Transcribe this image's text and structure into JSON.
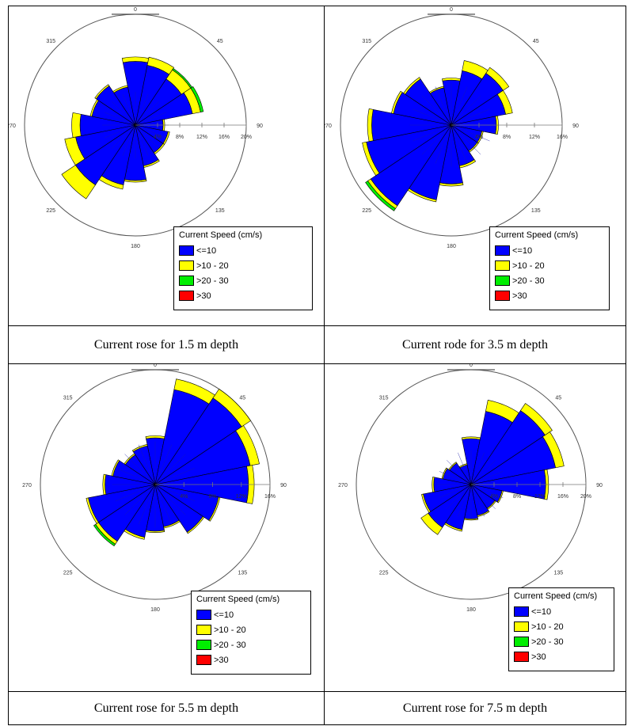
{
  "captions": [
    "Current rose for 1.5 m depth",
    "Current rode for 3.5 m depth",
    "Current rose for 5.5 m depth",
    "Current rose for 7.5 m depth"
  ],
  "colors": {
    "lte10": "#0000ff",
    "10to20": "#ffff00",
    "20to30": "#00ee00",
    "gt30": "#ff0000",
    "outline": "#000000",
    "axis": "#777777"
  },
  "chart_data": [
    {
      "type": "rose",
      "legend_title": "Current Speed (cm/s)",
      "legend_entries": [
        "<=10",
        ">10 - 20",
        ">20 - 30",
        ">30"
      ],
      "direction_labels": [
        "0",
        "45",
        "90",
        "135",
        "180",
        "225",
        "270",
        "315"
      ],
      "radial_ticks": [
        4,
        8,
        12,
        16,
        20
      ],
      "radial_tick_labels": [
        "4%",
        "8%",
        "12%",
        "16%",
        "20%"
      ],
      "rmax": 20,
      "directions_deg": [
        0,
        22.5,
        45,
        67.5,
        90,
        112.5,
        135,
        157.5,
        180,
        202.5,
        225,
        247.5,
        270,
        292.5,
        315,
        337.5
      ],
      "series": [
        {
          "name": "<=10",
          "values": [
            11.5,
            11.0,
            10.0,
            10.5,
            5.0,
            6.0,
            6.0,
            7.5,
            10.0,
            11.0,
            13.0,
            11.0,
            10.0,
            8.0,
            8.5,
            7.0
          ]
        },
        {
          "name": ">10 - 20",
          "values": [
            0.8,
            1.5,
            2.0,
            1.5,
            0.3,
            0.3,
            0.3,
            0.3,
            0.3,
            0.8,
            3.0,
            2.0,
            1.5,
            0.3,
            0.3,
            0.3
          ]
        },
        {
          "name": ">20 - 30",
          "values": [
            0,
            0,
            0.3,
            0.5,
            0,
            0,
            0,
            0,
            0,
            0,
            0,
            0,
            0,
            0,
            0,
            0
          ]
        },
        {
          "name": ">30",
          "values": [
            0,
            0,
            0,
            0,
            0,
            0,
            0,
            0,
            0,
            0,
            0,
            0,
            0,
            0,
            0,
            0
          ]
        }
      ]
    },
    {
      "type": "rose",
      "legend_title": "Current Speed (cm/s)",
      "legend_entries": [
        "<=10",
        ">10 - 20",
        ">20 - 30",
        ">30"
      ],
      "direction_labels": [
        "0",
        "45",
        "90",
        "135",
        "180",
        "225",
        "270",
        "315"
      ],
      "radial_ticks": [
        4,
        8,
        12,
        16
      ],
      "radial_tick_labels": [
        "4%",
        "8%",
        "12%",
        "16%"
      ],
      "rmax": 16,
      "directions_deg": [
        0,
        22.5,
        45,
        67.5,
        90,
        112.5,
        135,
        157.5,
        180,
        202.5,
        225,
        247.5,
        270,
        292.5,
        315,
        337.5
      ],
      "series": [
        {
          "name": "<=10",
          "values": [
            6.5,
            8.0,
            9.0,
            8.0,
            6.5,
            4.5,
            4.5,
            6.0,
            8.5,
            11.0,
            14.0,
            12.5,
            11.5,
            8.5,
            8.0,
            5.5
          ]
        },
        {
          "name": ">10 - 20",
          "values": [
            0.3,
            1.5,
            1.0,
            1.0,
            0.3,
            0.2,
            0.2,
            0.3,
            0.3,
            0.3,
            0.5,
            0.6,
            0.6,
            0.3,
            0.3,
            0.2
          ]
        },
        {
          "name": ">20 - 30",
          "values": [
            0,
            0,
            0,
            0,
            0,
            0,
            0,
            0,
            0,
            0,
            0.4,
            0,
            0,
            0,
            0,
            0
          ]
        },
        {
          "name": ">30",
          "values": [
            0,
            0,
            0,
            0,
            0,
            0,
            0,
            0,
            0,
            0,
            0,
            0,
            0,
            0,
            0,
            0
          ]
        }
      ]
    },
    {
      "type": "rose",
      "legend_title": "Current Speed (cm/s)",
      "legend_entries": [
        "<=10",
        ">10 - 20",
        ">20 - 30",
        ">30"
      ],
      "direction_labels": [
        "0",
        "45",
        "90",
        "135",
        "180",
        "225",
        "270",
        "315"
      ],
      "radial_ticks": [
        4,
        8,
        12,
        16
      ],
      "radial_tick_labels": [
        "4%",
        "8%",
        "12%",
        "16%"
      ],
      "rmax": 16,
      "directions_deg": [
        0,
        22.5,
        45,
        67.5,
        90,
        112.5,
        135,
        157.5,
        180,
        202.5,
        225,
        247.5,
        270,
        292.5,
        315,
        337.5
      ],
      "series": [
        {
          "name": "<=10",
          "values": [
            6.5,
            13.5,
            14.5,
            13.5,
            13.0,
            9.0,
            8.0,
            6.0,
            6.5,
            7.5,
            9.5,
            9.5,
            7.0,
            6.0,
            5.0,
            5.5
          ]
        },
        {
          "name": ">10 - 20",
          "values": [
            0.3,
            1.5,
            1.5,
            1.3,
            0.8,
            0.2,
            0.2,
            0.2,
            0.2,
            0.3,
            0.5,
            0.3,
            0.3,
            0.2,
            0.2,
            0.2
          ]
        },
        {
          "name": ">20 - 30",
          "values": [
            0,
            0,
            0,
            0,
            0,
            0,
            0,
            0,
            0,
            0,
            0.3,
            0,
            0,
            0,
            0,
            0
          ]
        },
        {
          "name": ">30",
          "values": [
            0,
            0,
            0,
            0,
            0,
            0,
            0,
            0,
            0,
            0,
            0,
            0,
            0,
            0,
            0,
            0
          ]
        }
      ]
    },
    {
      "type": "rose",
      "legend_title": "Current Speed (cm/s)",
      "legend_entries": [
        "<=10",
        ">10 - 20",
        ">20 - 30",
        ">30"
      ],
      "direction_labels": [
        "0",
        "45",
        "90",
        "135",
        "180",
        "225",
        "270",
        "315"
      ],
      "radial_ticks": [
        4,
        8,
        12,
        16,
        20
      ],
      "radial_tick_labels": [
        "4%",
        "8%",
        "12%",
        "16%",
        "20%"
      ],
      "rmax": 20,
      "directions_deg": [
        0,
        22.5,
        45,
        67.5,
        90,
        112.5,
        135,
        157.5,
        180,
        202.5,
        225,
        247.5,
        270,
        292.5,
        315,
        337.5
      ],
      "series": [
        {
          "name": "<=10",
          "values": [
            8.0,
            13.0,
            15.5,
            15.0,
            13.0,
            5.5,
            5.0,
            5.5,
            6.0,
            8.0,
            9.0,
            8.5,
            6.5,
            5.0,
            4.5,
            3.5
          ]
        },
        {
          "name": ">10 - 20",
          "values": [
            0.3,
            2.0,
            1.5,
            1.5,
            0.5,
            0.2,
            0.2,
            0.2,
            0.2,
            0.3,
            1.5,
            0.3,
            0.3,
            0.2,
            0.2,
            0.2
          ]
        },
        {
          "name": ">20 - 30",
          "values": [
            0,
            0,
            0,
            0,
            0,
            0,
            0,
            0,
            0,
            0,
            0,
            0,
            0,
            0,
            0,
            0
          ]
        },
        {
          "name": ">30",
          "values": [
            0,
            0,
            0,
            0,
            0,
            0,
            0,
            0,
            0,
            0,
            0,
            0,
            0,
            0,
            0,
            0
          ]
        }
      ]
    }
  ]
}
